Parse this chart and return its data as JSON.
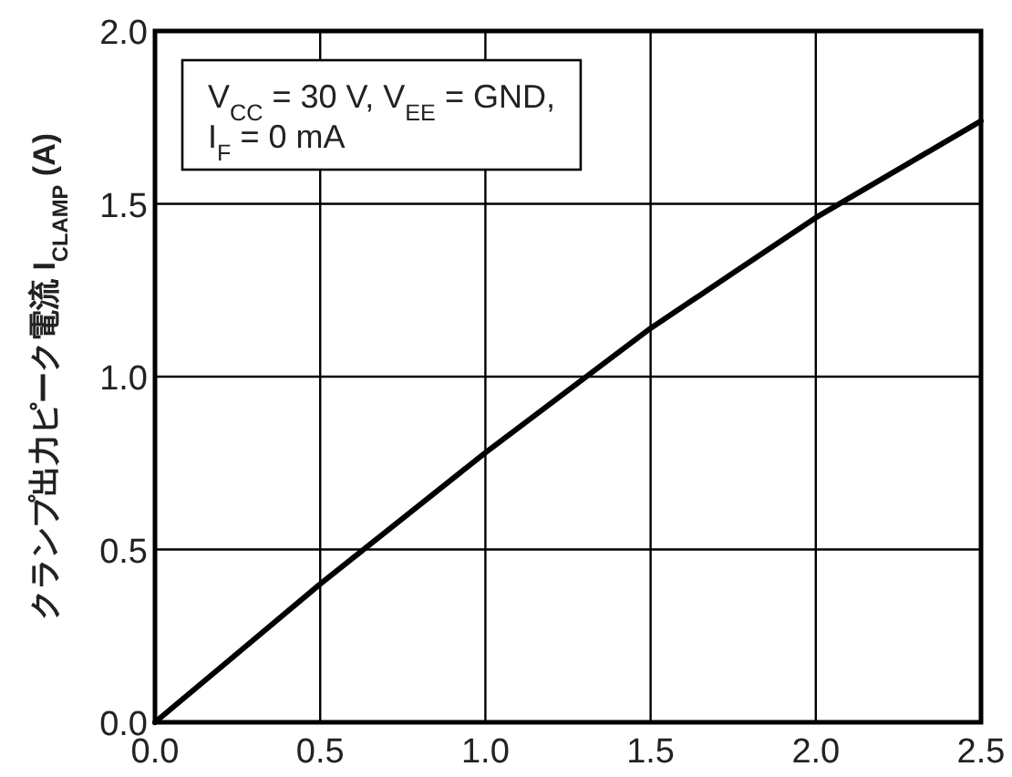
{
  "chart_data": {
    "type": "line",
    "ylabel": "クランプ出力ピーク電流  I$_{CLAMP}$ (A)",
    "annotations": [
      "V$_{CC}$ = 30 V, V$_{EE}$ = GND,",
      "I$_{F}$ = 0 mA"
    ],
    "x": [
      0,
      0.25,
      0.5,
      0.75,
      1.0,
      1.25,
      1.5,
      1.75,
      2.0,
      2.25,
      2.5
    ],
    "series": [
      {
        "color": "#000000",
        "values": [
          0,
          0.2,
          0.4,
          0.59,
          0.78,
          0.96,
          1.14,
          1.3,
          1.46,
          1.6,
          1.74
        ]
      }
    ],
    "xlim": [
      0,
      2.5
    ],
    "ylim": [
      0,
      2.0
    ],
    "xticks": [
      {
        "value": 0,
        "label": "0.0"
      },
      0.5,
      {
        "value": 1,
        "label": "1.0"
      },
      1.5,
      {
        "value": 2,
        "label": "2.0"
      },
      2.5
    ],
    "yticks": [
      {
        "value": 0,
        "label": "0.0"
      },
      0.5,
      {
        "value": 1,
        "label": "1.0"
      },
      1.5,
      {
        "value": 2,
        "label": "2.0"
      }
    ],
    "grid": true,
    "line_style": "solid"
  }
}
